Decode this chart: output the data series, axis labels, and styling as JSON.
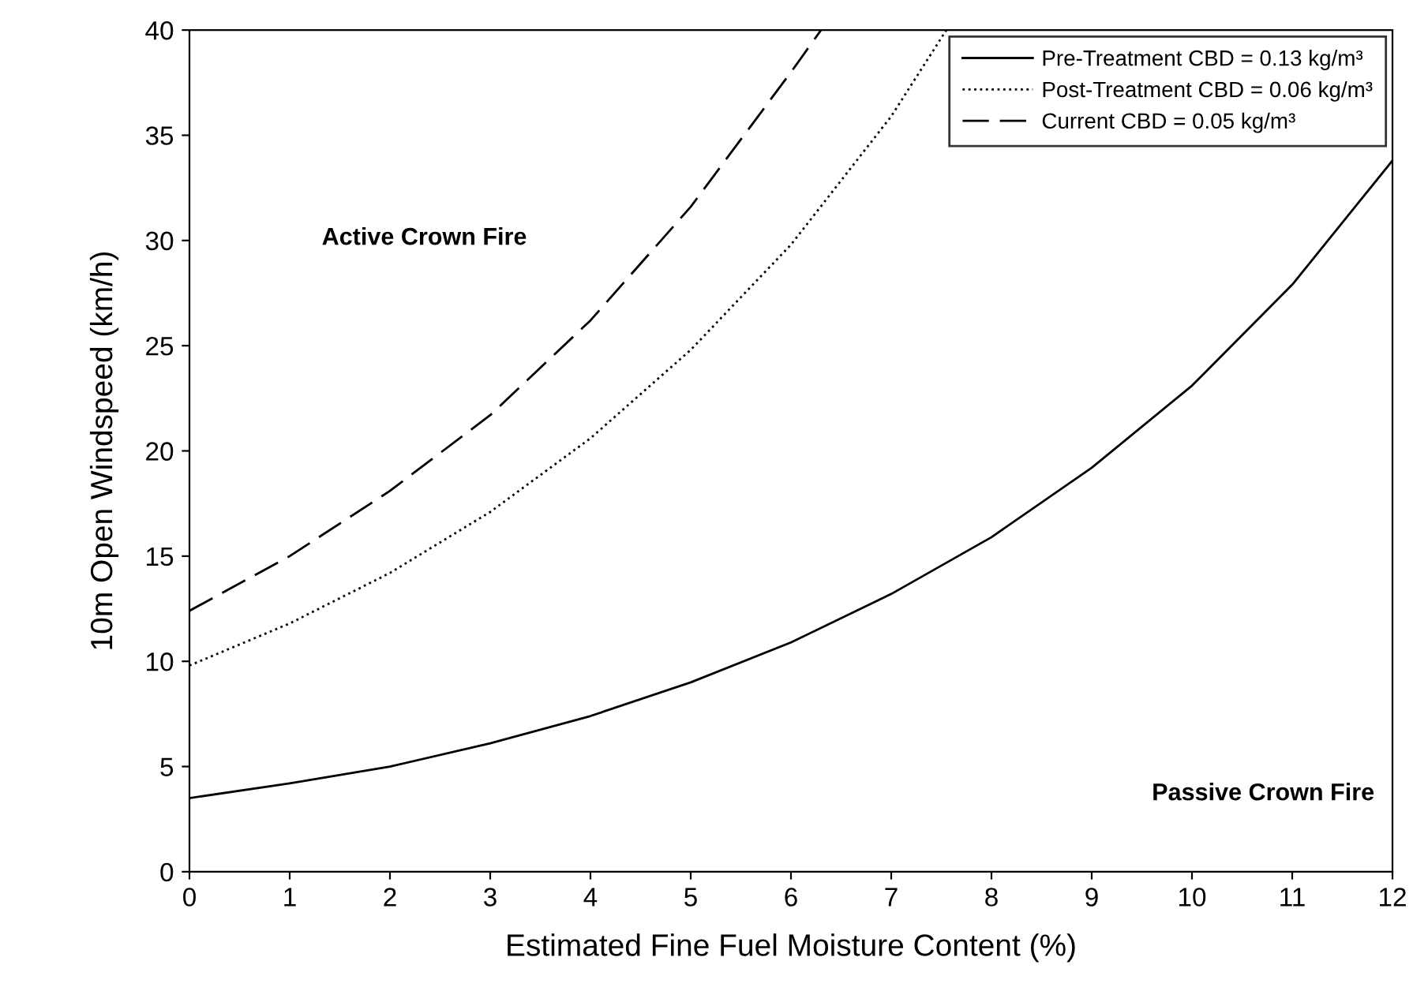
{
  "chart_data": {
    "type": "line",
    "xlabel": "Estimated Fine Fuel Moisture Content (%)",
    "ylabel": "10m Open Windspeed (km/h)",
    "xlim": [
      0,
      12
    ],
    "ylim": [
      0,
      40
    ],
    "xticks": [
      0,
      1,
      2,
      3,
      4,
      5,
      6,
      7,
      8,
      9,
      10,
      11,
      12
    ],
    "yticks": [
      0,
      5,
      10,
      15,
      20,
      25,
      30,
      35,
      40
    ],
    "grid": false,
    "legend": "top right",
    "series": [
      {
        "name": "Pre-Treatment CBD = 0.13 kg/m³",
        "color": "#000000",
        "line_style": "solid",
        "x": [
          0,
          1,
          2,
          3,
          4,
          5,
          6,
          7,
          8,
          9,
          10,
          11,
          12
        ],
        "values": [
          3.5,
          4.2,
          5.0,
          6.1,
          7.4,
          9.0,
          10.9,
          13.2,
          15.9,
          19.2,
          23.1,
          27.9,
          33.8
        ]
      },
      {
        "name": "Post-Treatment CBD = 0.06 kg/m³",
        "color": "#000000",
        "line_style": "dotted",
        "x": [
          0,
          1,
          2,
          3,
          4,
          5,
          6,
          7,
          7.55
        ],
        "values": [
          9.8,
          11.8,
          14.2,
          17.1,
          20.6,
          24.8,
          29.8,
          35.9,
          40
        ]
      },
      {
        "name": "Current CBD = 0.05 kg/m³",
        "color": "#000000",
        "line_style": "dashed",
        "x": [
          0,
          1,
          2,
          3,
          4,
          5,
          6,
          6.3
        ],
        "values": [
          12.4,
          15.0,
          18.1,
          21.7,
          26.2,
          31.6,
          38.0,
          40
        ]
      }
    ],
    "annotations": [
      "Active Crown Fire",
      "Passive Crown Fire"
    ]
  }
}
